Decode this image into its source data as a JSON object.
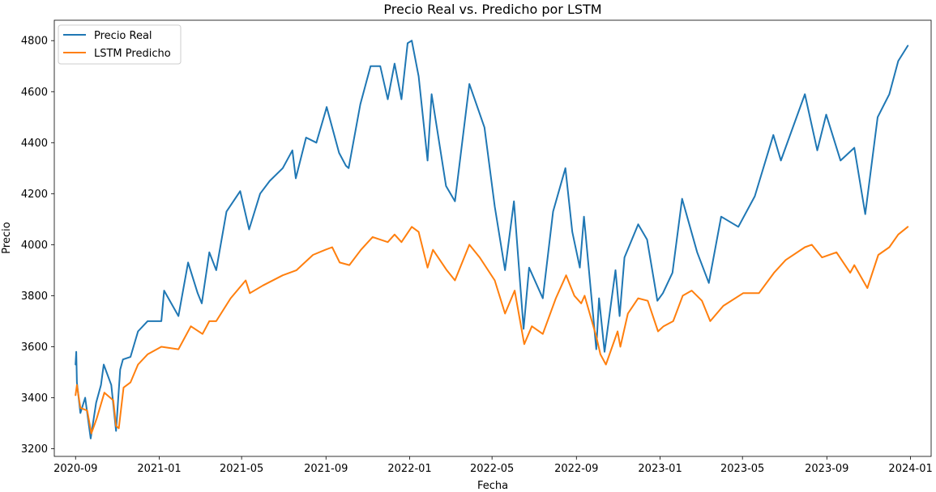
{
  "chart_data": {
    "type": "line",
    "title": "Precio Real vs. Predicho por LSTM",
    "xlabel": "Fecha",
    "ylabel": "Precio",
    "xlim": [
      "2020-08-01",
      "2024-01-31"
    ],
    "ylim": [
      3170,
      4880
    ],
    "x_ticks": [
      "2020-09",
      "2021-01",
      "2021-05",
      "2021-09",
      "2022-01",
      "2022-05",
      "2022-09",
      "2023-01",
      "2023-05",
      "2023-09",
      "2024-01"
    ],
    "y_ticks": [
      3200,
      3400,
      3600,
      3800,
      4000,
      4200,
      4400,
      4600,
      4800
    ],
    "grid": false,
    "legend_position": "top-left",
    "series": [
      {
        "name": "Precio Real",
        "color": "#1f77b4",
        "points": [
          [
            "2020-09-01",
            3530
          ],
          [
            "2020-09-02",
            3580
          ],
          [
            "2020-09-03",
            3460
          ],
          [
            "2020-09-08",
            3340
          ],
          [
            "2020-09-15",
            3400
          ],
          [
            "2020-09-23",
            3240
          ],
          [
            "2020-10-01",
            3380
          ],
          [
            "2020-10-08",
            3450
          ],
          [
            "2020-10-12",
            3530
          ],
          [
            "2020-10-23",
            3450
          ],
          [
            "2020-10-30",
            3270
          ],
          [
            "2020-11-05",
            3510
          ],
          [
            "2020-11-09",
            3550
          ],
          [
            "2020-11-20",
            3560
          ],
          [
            "2020-12-01",
            3660
          ],
          [
            "2020-12-15",
            3700
          ],
          [
            "2021-01-04",
            3700
          ],
          [
            "2021-01-08",
            3820
          ],
          [
            "2021-01-29",
            3720
          ],
          [
            "2021-02-12",
            3930
          ],
          [
            "2021-02-26",
            3810
          ],
          [
            "2021-03-04",
            3770
          ],
          [
            "2021-03-15",
            3970
          ],
          [
            "2021-03-25",
            3900
          ],
          [
            "2021-04-09",
            4130
          ],
          [
            "2021-04-29",
            4210
          ],
          [
            "2021-05-12",
            4060
          ],
          [
            "2021-05-28",
            4200
          ],
          [
            "2021-06-11",
            4250
          ],
          [
            "2021-06-30",
            4300
          ],
          [
            "2021-07-14",
            4370
          ],
          [
            "2021-07-19",
            4260
          ],
          [
            "2021-08-03",
            4420
          ],
          [
            "2021-08-18",
            4400
          ],
          [
            "2021-08-31",
            4520
          ],
          [
            "2021-09-02",
            4540
          ],
          [
            "2021-09-20",
            4360
          ],
          [
            "2021-09-30",
            4310
          ],
          [
            "2021-10-04",
            4300
          ],
          [
            "2021-10-21",
            4550
          ],
          [
            "2021-11-05",
            4700
          ],
          [
            "2021-11-19",
            4700
          ],
          [
            "2021-11-30",
            4570
          ],
          [
            "2021-12-10",
            4710
          ],
          [
            "2021-12-20",
            4570
          ],
          [
            "2021-12-29",
            4790
          ],
          [
            "2022-01-04",
            4800
          ],
          [
            "2022-01-14",
            4660
          ],
          [
            "2022-01-27",
            4330
          ],
          [
            "2022-02-02",
            4590
          ],
          [
            "2022-02-23",
            4230
          ],
          [
            "2022-03-08",
            4170
          ],
          [
            "2022-03-29",
            4630
          ],
          [
            "2022-04-20",
            4460
          ],
          [
            "2022-05-05",
            4150
          ],
          [
            "2022-05-20",
            3900
          ],
          [
            "2022-06-02",
            4170
          ],
          [
            "2022-06-16",
            3670
          ],
          [
            "2022-06-24",
            3910
          ],
          [
            "2022-07-14",
            3790
          ],
          [
            "2022-07-29",
            4130
          ],
          [
            "2022-08-16",
            4300
          ],
          [
            "2022-08-26",
            4050
          ],
          [
            "2022-09-06",
            3910
          ],
          [
            "2022-09-12",
            4110
          ],
          [
            "2022-09-30",
            3590
          ],
          [
            "2022-10-04",
            3790
          ],
          [
            "2022-10-12",
            3580
          ],
          [
            "2022-10-28",
            3900
          ],
          [
            "2022-11-03",
            3720
          ],
          [
            "2022-11-10",
            3950
          ],
          [
            "2022-11-30",
            4080
          ],
          [
            "2022-12-13",
            4020
          ],
          [
            "2022-12-28",
            3780
          ],
          [
            "2023-01-05",
            3810
          ],
          [
            "2023-01-19",
            3890
          ],
          [
            "2023-02-02",
            4180
          ],
          [
            "2023-02-24",
            3970
          ],
          [
            "2023-03-13",
            3850
          ],
          [
            "2023-03-31",
            4110
          ],
          [
            "2023-04-25",
            4070
          ],
          [
            "2023-05-19",
            4190
          ],
          [
            "2023-06-15",
            4430
          ],
          [
            "2023-06-26",
            4330
          ],
          [
            "2023-07-31",
            4590
          ],
          [
            "2023-08-18",
            4370
          ],
          [
            "2023-08-31",
            4510
          ],
          [
            "2023-09-21",
            4330
          ],
          [
            "2023-10-11",
            4380
          ],
          [
            "2023-10-27",
            4120
          ],
          [
            "2023-11-14",
            4500
          ],
          [
            "2023-12-01",
            4590
          ],
          [
            "2023-12-14",
            4720
          ],
          [
            "2023-12-28",
            4780
          ]
        ]
      },
      {
        "name": "LSTM Predicho",
        "color": "#ff7f0e",
        "points": [
          [
            "2020-09-01",
            3410
          ],
          [
            "2020-09-03",
            3450
          ],
          [
            "2020-09-08",
            3360
          ],
          [
            "2020-09-18",
            3350
          ],
          [
            "2020-09-24",
            3260
          ],
          [
            "2020-10-02",
            3320
          ],
          [
            "2020-10-13",
            3420
          ],
          [
            "2020-10-26",
            3390
          ],
          [
            "2020-10-30",
            3290
          ],
          [
            "2020-11-03",
            3280
          ],
          [
            "2020-11-10",
            3440
          ],
          [
            "2020-11-20",
            3460
          ],
          [
            "2020-12-01",
            3530
          ],
          [
            "2020-12-15",
            3570
          ],
          [
            "2021-01-04",
            3600
          ],
          [
            "2021-01-29",
            3590
          ],
          [
            "2021-02-16",
            3680
          ],
          [
            "2021-03-05",
            3650
          ],
          [
            "2021-03-15",
            3700
          ],
          [
            "2021-03-25",
            3700
          ],
          [
            "2021-04-15",
            3790
          ],
          [
            "2021-05-07",
            3860
          ],
          [
            "2021-05-13",
            3810
          ],
          [
            "2021-06-01",
            3840
          ],
          [
            "2021-06-30",
            3880
          ],
          [
            "2021-07-20",
            3900
          ],
          [
            "2021-08-13",
            3960
          ],
          [
            "2021-08-31",
            3980
          ],
          [
            "2021-09-10",
            3990
          ],
          [
            "2021-09-21",
            3930
          ],
          [
            "2021-10-05",
            3920
          ],
          [
            "2021-10-22",
            3980
          ],
          [
            "2021-11-08",
            4030
          ],
          [
            "2021-11-30",
            4010
          ],
          [
            "2021-12-10",
            4040
          ],
          [
            "2021-12-20",
            4010
          ],
          [
            "2022-01-04",
            4070
          ],
          [
            "2022-01-14",
            4050
          ],
          [
            "2022-01-27",
            3910
          ],
          [
            "2022-02-04",
            3980
          ],
          [
            "2022-02-24",
            3900
          ],
          [
            "2022-03-08",
            3860
          ],
          [
            "2022-03-29",
            4000
          ],
          [
            "2022-04-13",
            3950
          ],
          [
            "2022-05-05",
            3860
          ],
          [
            "2022-05-20",
            3730
          ],
          [
            "2022-06-03",
            3820
          ],
          [
            "2022-06-17",
            3610
          ],
          [
            "2022-06-28",
            3680
          ],
          [
            "2022-07-14",
            3650
          ],
          [
            "2022-08-02",
            3790
          ],
          [
            "2022-08-17",
            3880
          ],
          [
            "2022-08-29",
            3800
          ],
          [
            "2022-09-08",
            3770
          ],
          [
            "2022-09-13",
            3800
          ],
          [
            "2022-09-30",
            3640
          ],
          [
            "2022-10-06",
            3570
          ],
          [
            "2022-10-14",
            3530
          ],
          [
            "2022-10-31",
            3660
          ],
          [
            "2022-11-04",
            3600
          ],
          [
            "2022-11-15",
            3730
          ],
          [
            "2022-11-30",
            3790
          ],
          [
            "2022-12-14",
            3780
          ],
          [
            "2022-12-29",
            3660
          ],
          [
            "2023-01-06",
            3680
          ],
          [
            "2023-01-20",
            3700
          ],
          [
            "2023-02-03",
            3800
          ],
          [
            "2023-02-16",
            3820
          ],
          [
            "2023-03-03",
            3780
          ],
          [
            "2023-03-15",
            3700
          ],
          [
            "2023-04-03",
            3760
          ],
          [
            "2023-05-02",
            3810
          ],
          [
            "2023-05-25",
            3810
          ],
          [
            "2023-06-16",
            3890
          ],
          [
            "2023-07-03",
            3940
          ],
          [
            "2023-07-31",
            3990
          ],
          [
            "2023-08-10",
            4000
          ],
          [
            "2023-08-25",
            3950
          ],
          [
            "2023-09-15",
            3970
          ],
          [
            "2023-10-05",
            3890
          ],
          [
            "2023-10-11",
            3920
          ],
          [
            "2023-10-30",
            3830
          ],
          [
            "2023-11-15",
            3960
          ],
          [
            "2023-12-01",
            3990
          ],
          [
            "2023-12-14",
            4040
          ],
          [
            "2023-12-28",
            4070
          ]
        ]
      }
    ]
  }
}
